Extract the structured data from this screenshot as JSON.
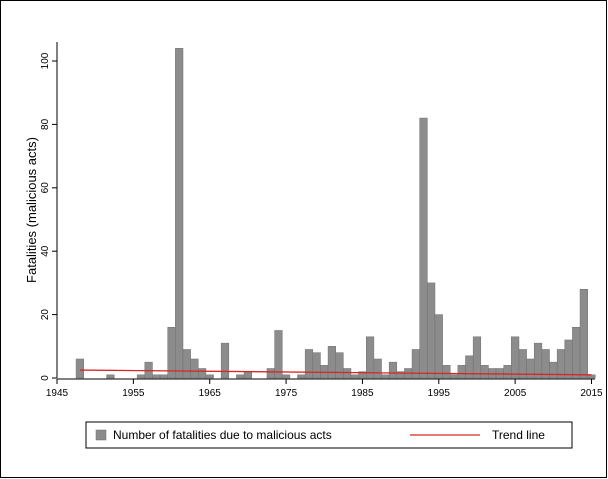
{
  "chart_data": {
    "type": "bar",
    "title": "",
    "xlabel": "",
    "ylabel": "Fatalities (malicious acts)",
    "xlim": [
      1945,
      2016
    ],
    "ylim": [
      0,
      106
    ],
    "x_ticks": [
      1945,
      1955,
      1965,
      1975,
      1985,
      1995,
      2005,
      2015
    ],
    "y_ticks": [
      0,
      20,
      40,
      60,
      80,
      100
    ],
    "grid": false,
    "legend_position": "bottom",
    "series": [
      {
        "name": "Number of fatalities due to malicious acts",
        "kind": "bar",
        "color": "#8c8c8c",
        "x": [
          1948,
          1952,
          1956,
          1957,
          1958,
          1959,
          1960,
          1961,
          1962,
          1963,
          1964,
          1965,
          1967,
          1969,
          1970,
          1973,
          1974,
          1975,
          1977,
          1978,
          1979,
          1980,
          1981,
          1982,
          1983,
          1984,
          1985,
          1986,
          1987,
          1988,
          1989,
          1990,
          1991,
          1992,
          1993,
          1994,
          1995,
          1996,
          1997,
          1998,
          1999,
          2000,
          2001,
          2002,
          2003,
          2004,
          2005,
          2006,
          2007,
          2008,
          2009,
          2010,
          2011,
          2012,
          2013,
          2014,
          2015
        ],
        "values": [
          6,
          1,
          1,
          5,
          1,
          1,
          16,
          104,
          9,
          6,
          3,
          1,
          11,
          1,
          2,
          3,
          15,
          1,
          1,
          9,
          8,
          4,
          10,
          8,
          3,
          1,
          2,
          13,
          6,
          1,
          5,
          2,
          3,
          9,
          82,
          30,
          20,
          4,
          1,
          4,
          7,
          13,
          4,
          3,
          3,
          4,
          13,
          9,
          6,
          11,
          9,
          5,
          9,
          12,
          16,
          28,
          1
        ]
      },
      {
        "name": "Trend line",
        "kind": "line",
        "color": "#d62728",
        "x": [
          1948,
          2015
        ],
        "values": [
          2.5,
          1.0
        ]
      }
    ]
  }
}
